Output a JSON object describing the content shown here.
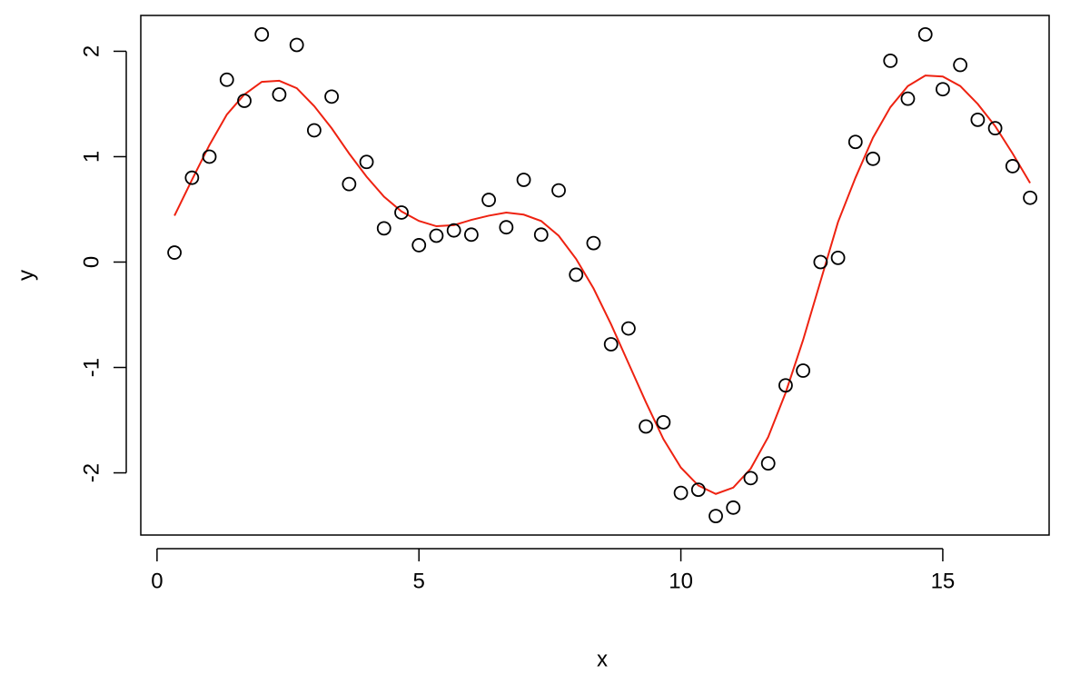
{
  "chart_data": {
    "type": "scatter",
    "xlabel": "x",
    "ylabel": "y",
    "x": [
      0.333,
      0.667,
      1.0,
      1.333,
      1.667,
      2.0,
      2.333,
      2.667,
      3.0,
      3.333,
      3.667,
      4.0,
      4.333,
      4.667,
      5.0,
      5.333,
      5.667,
      6.0,
      6.333,
      6.667,
      7.0,
      7.333,
      7.667,
      8.0,
      8.333,
      8.667,
      9.0,
      9.333,
      9.667,
      10.0,
      10.333,
      10.667,
      11.0,
      11.333,
      11.667,
      12.0,
      12.333,
      12.667,
      13.0,
      13.333,
      13.667,
      14.0,
      14.333,
      14.667,
      15.0,
      15.333,
      15.667,
      16.0,
      16.333,
      16.667
    ],
    "points": {
      "color": "#000000",
      "values": [
        0.09,
        0.8,
        1.0,
        1.73,
        1.53,
        2.16,
        1.59,
        2.06,
        1.25,
        1.57,
        0.74,
        0.95,
        0.32,
        0.47,
        0.16,
        0.25,
        0.3,
        0.26,
        0.59,
        0.33,
        0.78,
        0.26,
        0.68,
        -0.12,
        0.18,
        -0.78,
        -0.63,
        -1.56,
        -1.52,
        -2.19,
        -2.16,
        -2.41,
        -2.33,
        -2.05,
        -1.91,
        -1.17,
        -1.03,
        0.0,
        0.04,
        1.14,
        0.98,
        1.91,
        1.55,
        2.16,
        1.64,
        1.87,
        1.35,
        1.27,
        0.91,
        0.61
      ]
    },
    "fit": {
      "color": "#ee2211",
      "values": [
        0.44,
        0.78,
        1.11,
        1.4,
        1.59,
        1.71,
        1.72,
        1.65,
        1.48,
        1.27,
        1.03,
        0.81,
        0.62,
        0.48,
        0.39,
        0.34,
        0.35,
        0.4,
        0.44,
        0.47,
        0.45,
        0.39,
        0.25,
        0.03,
        -0.25,
        -0.59,
        -0.96,
        -1.33,
        -1.68,
        -1.95,
        -2.12,
        -2.2,
        -2.14,
        -1.96,
        -1.66,
        -1.24,
        -0.74,
        -0.18,
        0.38,
        0.8,
        1.18,
        1.47,
        1.67,
        1.77,
        1.76,
        1.67,
        1.5,
        1.29,
        1.03,
        0.75
      ]
    },
    "xlim": [
      -0.31,
      17.03
    ],
    "ylim": [
      -2.59,
      2.34
    ],
    "xticks": [
      0,
      5,
      10,
      15
    ],
    "yticks": [
      -2,
      -1,
      0,
      1,
      2
    ]
  }
}
